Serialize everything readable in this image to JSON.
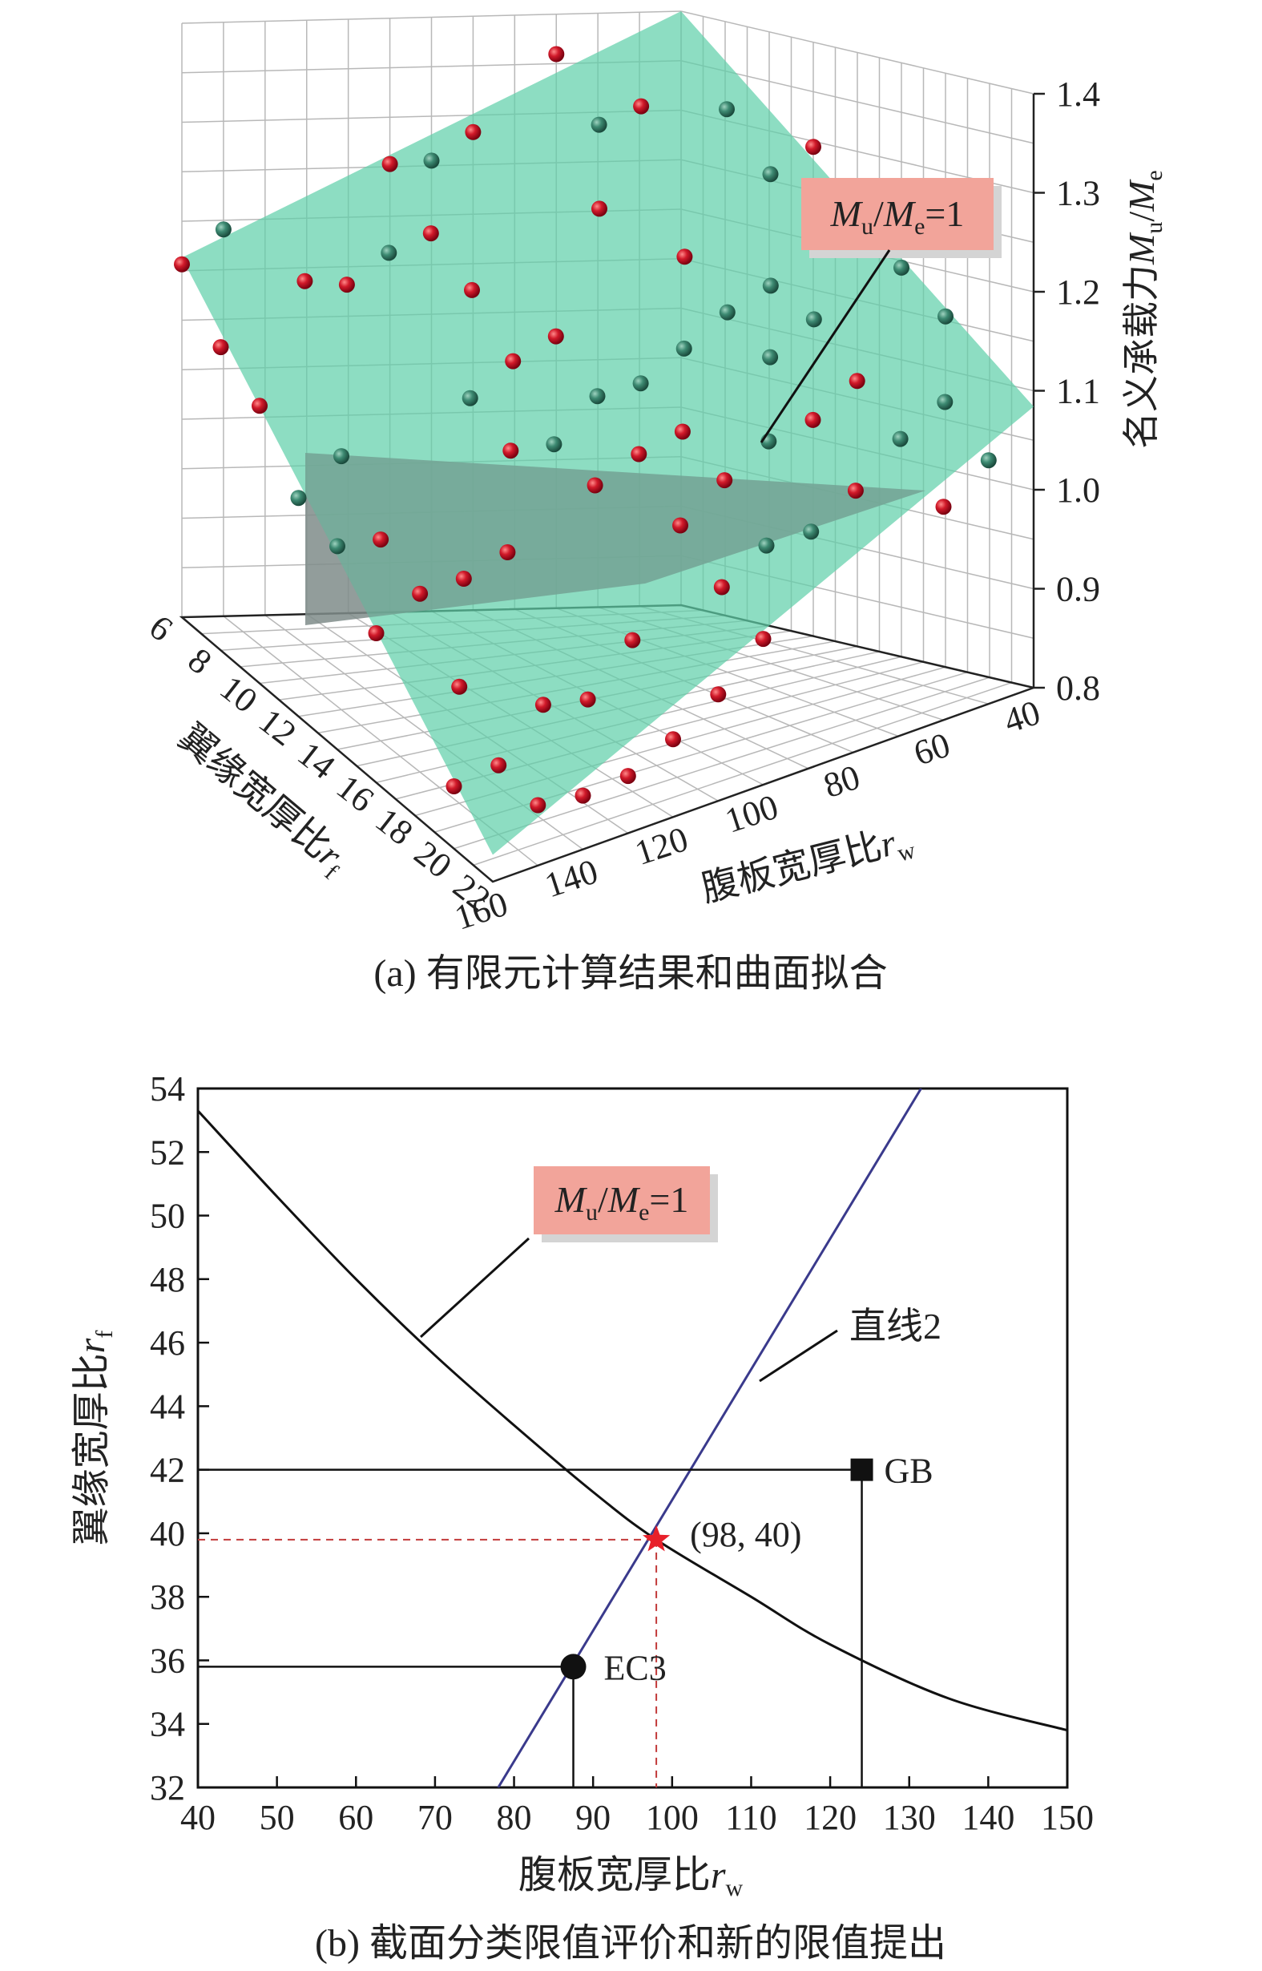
{
  "chart_data": [
    {
      "type": "scatter",
      "x_label_prefix": "腹板宽厚比",
      "x_label_var": "r",
      "x_label_sub": "w",
      "y_label_prefix": "翼缘宽厚比",
      "y_label_var": "r",
      "y_label_sub": "f",
      "z_label_prefix": "名义承载力",
      "z_label_var1": "M",
      "z_label_sub1": "u",
      "z_label_slash": "/",
      "z_label_var2": "M",
      "z_label_sub2": "e",
      "x_ticks": [
        "160",
        "140",
        "120",
        "100",
        "80",
        "60",
        "40"
      ],
      "y_ticks": [
        "6",
        "8",
        "10",
        "12",
        "14",
        "16",
        "18",
        "20",
        "22"
      ],
      "z_ticks": [
        "0.8",
        "0.9",
        "1.0",
        "1.1",
        "1.2",
        "1.3",
        "1.4"
      ],
      "xlim": [
        40,
        160
      ],
      "ylim": [
        6,
        22
      ],
      "zlim": [
        0.8,
        1.4
      ],
      "surface_label": {
        "var1": "M",
        "sub1": "u",
        "slash": "/",
        "var2": "M",
        "sub2": "e",
        "rest": "=1"
      },
      "caption": "(a) 有限元计算结果和曲面拟合",
      "colors": {
        "point_above": "#c8102e",
        "point_below": "#2e6b58",
        "surface": "#5fcfa8",
        "plane": "#7f8c8a",
        "label_box": "#f2a49a"
      }
    },
    {
      "type": "line",
      "xlim": [
        40,
        150
      ],
      "ylim": [
        32,
        54
      ],
      "x_ticks": [
        40,
        50,
        60,
        70,
        80,
        90,
        100,
        110,
        120,
        130,
        140,
        150
      ],
      "y_ticks": [
        32,
        34,
        36,
        38,
        40,
        42,
        44,
        46,
        48,
        50,
        52,
        54
      ],
      "x_label_prefix": "腹板宽厚比",
      "x_label_var": "r",
      "x_label_sub": "w",
      "y_label_prefix": "翼缘宽厚比",
      "y_label_var": "r",
      "y_label_sub": "f",
      "series": [
        {
          "name": "Mu/Me=1",
          "x": [
            40,
            50,
            60,
            70,
            80,
            90,
            98,
            110,
            120,
            135,
            150
          ],
          "y": [
            53.3,
            50.6,
            48.0,
            45.6,
            43.4,
            41.3,
            39.8,
            38.0,
            36.5,
            34.8,
            33.8
          ]
        },
        {
          "name": "直线2",
          "x": [
            78,
            131.5
          ],
          "y": [
            32,
            54
          ]
        }
      ],
      "curve_label": {
        "var1": "M",
        "sub1": "u",
        "slash": "/",
        "var2": "M",
        "sub2": "e",
        "rest": "=1"
      },
      "line_label": "直线2",
      "points": [
        {
          "label": "GB",
          "x": 124,
          "y": 42,
          "marker": "square"
        },
        {
          "label": "EC3",
          "x": 87.5,
          "y": 35.8,
          "marker": "circle"
        },
        {
          "label": "(98, 40)",
          "x": 98,
          "y": 39.8,
          "marker": "star"
        }
      ],
      "caption": "(b) 截面分类限值评价和新的限值提出",
      "colors": {
        "curve": "#111111",
        "line2": "#3a3a8c",
        "star": "#e8202a",
        "guide": "#c23a3a",
        "label_box": "#f2a49a"
      }
    }
  ]
}
